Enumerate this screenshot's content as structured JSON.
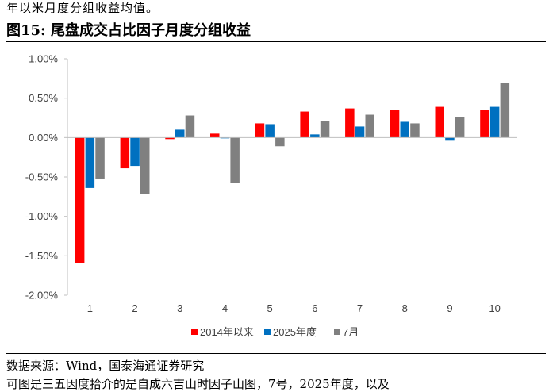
{
  "header": {
    "intro_text": "年以米月度分组收益均值。",
    "figure_title": "图15:  尾盘成交占比因子月度分组收益"
  },
  "footer": {
    "source": "数据来源：Wind，国泰海通证券研究",
    "following_text": "可图是三五因度拾介的是自成六吉山时因子山图，7号，2025年度，以及"
  },
  "colors": {
    "series_2014": "#ff0000",
    "series_2025": "#0070c0",
    "series_july": "#808080",
    "axis": "#bfbfbf"
  },
  "chart_data": {
    "type": "bar",
    "categories": [
      "1",
      "2",
      "3",
      "4",
      "5",
      "6",
      "7",
      "8",
      "9",
      "10"
    ],
    "series": [
      {
        "name": "2014年以来",
        "values": [
          -1.59,
          -0.39,
          -0.02,
          0.05,
          0.18,
          0.33,
          0.37,
          0.35,
          0.39,
          0.35
        ]
      },
      {
        "name": "2025年度",
        "values": [
          -0.64,
          -0.36,
          0.1,
          -0.01,
          0.17,
          0.04,
          0.14,
          0.2,
          -0.04,
          0.39
        ]
      },
      {
        "name": "7月",
        "values": [
          -0.52,
          -0.72,
          0.28,
          -0.58,
          -0.11,
          0.21,
          0.29,
          0.18,
          0.26,
          0.69
        ]
      }
    ],
    "ylim": [
      -2.0,
      1.0
    ],
    "yticks": [
      "-2.00%",
      "-1.50%",
      "-1.00%",
      "-0.50%",
      "0.00%",
      "0.50%",
      "1.00%"
    ],
    "ytick_values": [
      -2.0,
      -1.5,
      -1.0,
      -0.5,
      0.0,
      0.5,
      1.0
    ],
    "grid": false,
    "legend_position": "bottom"
  }
}
